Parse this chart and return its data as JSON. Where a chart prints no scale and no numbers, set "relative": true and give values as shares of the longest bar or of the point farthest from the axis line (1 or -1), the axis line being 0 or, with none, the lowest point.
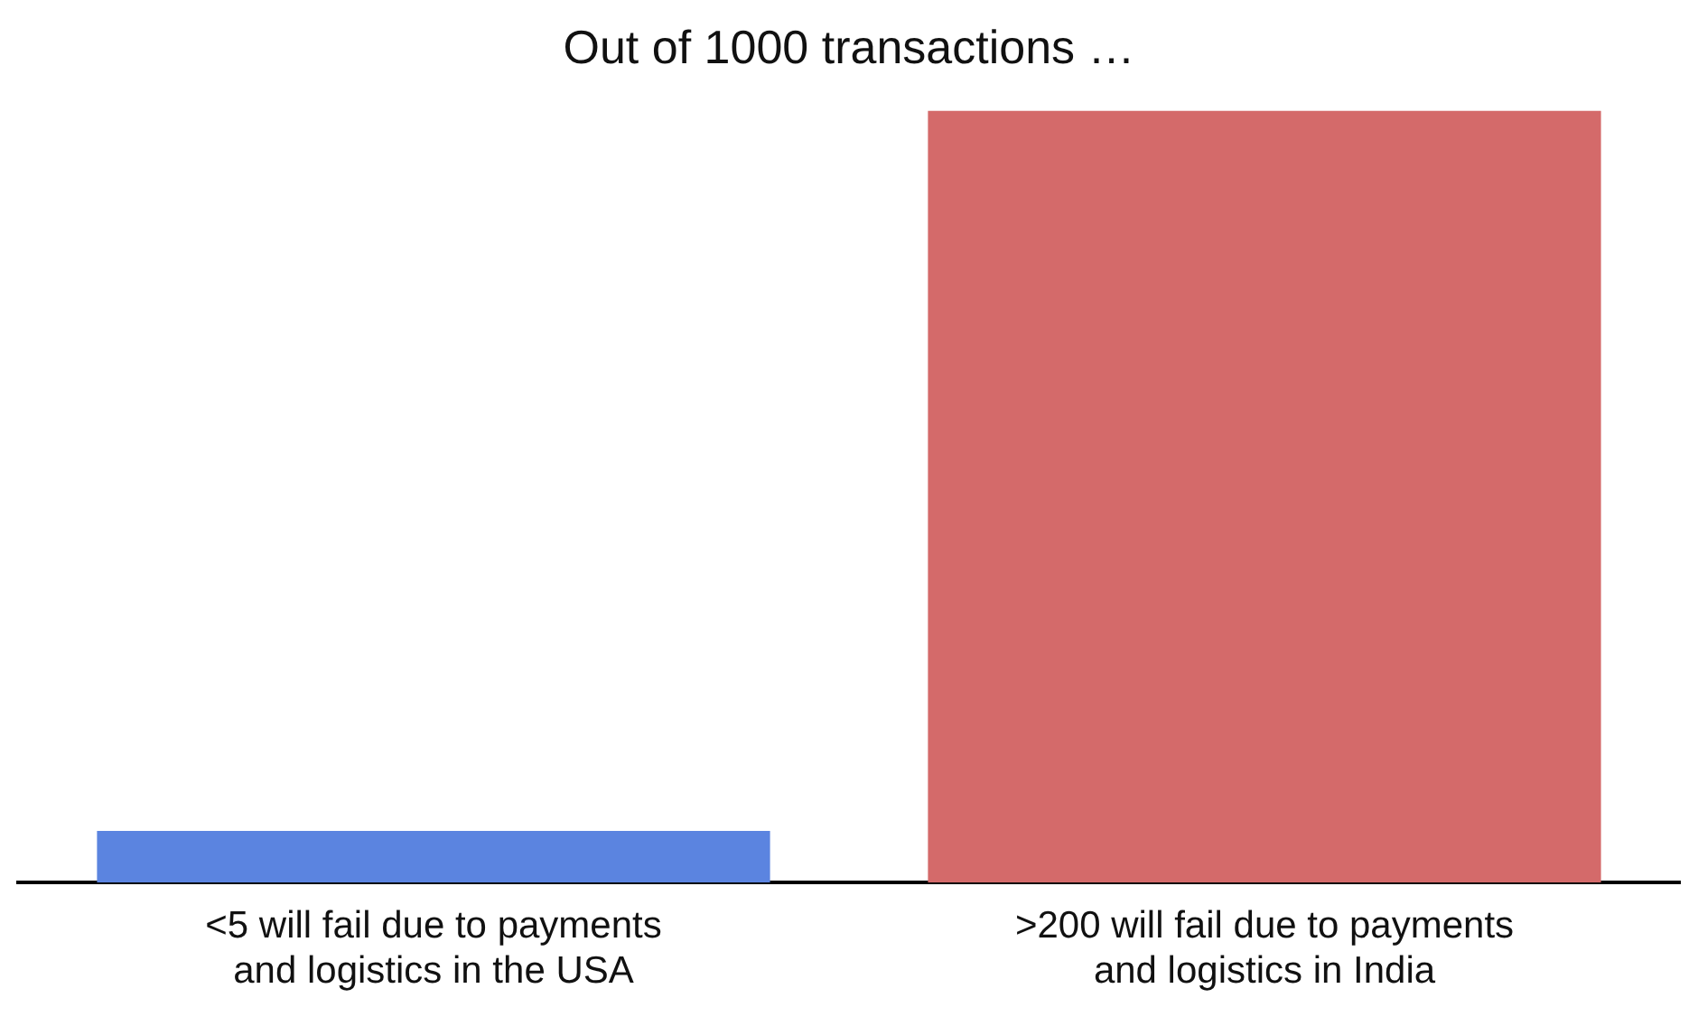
{
  "chart_data": {
    "type": "bar",
    "title": "Out of 1000 transactions …",
    "relative": true,
    "categories": [
      "<5 will fail due to payments and logistics in the USA",
      ">200 will fail due to payments and logistics in India"
    ],
    "values": [
      0.067,
      1
    ],
    "colors": [
      "#5b84e0",
      "#d46a6a"
    ],
    "grid": false,
    "legend": false
  }
}
